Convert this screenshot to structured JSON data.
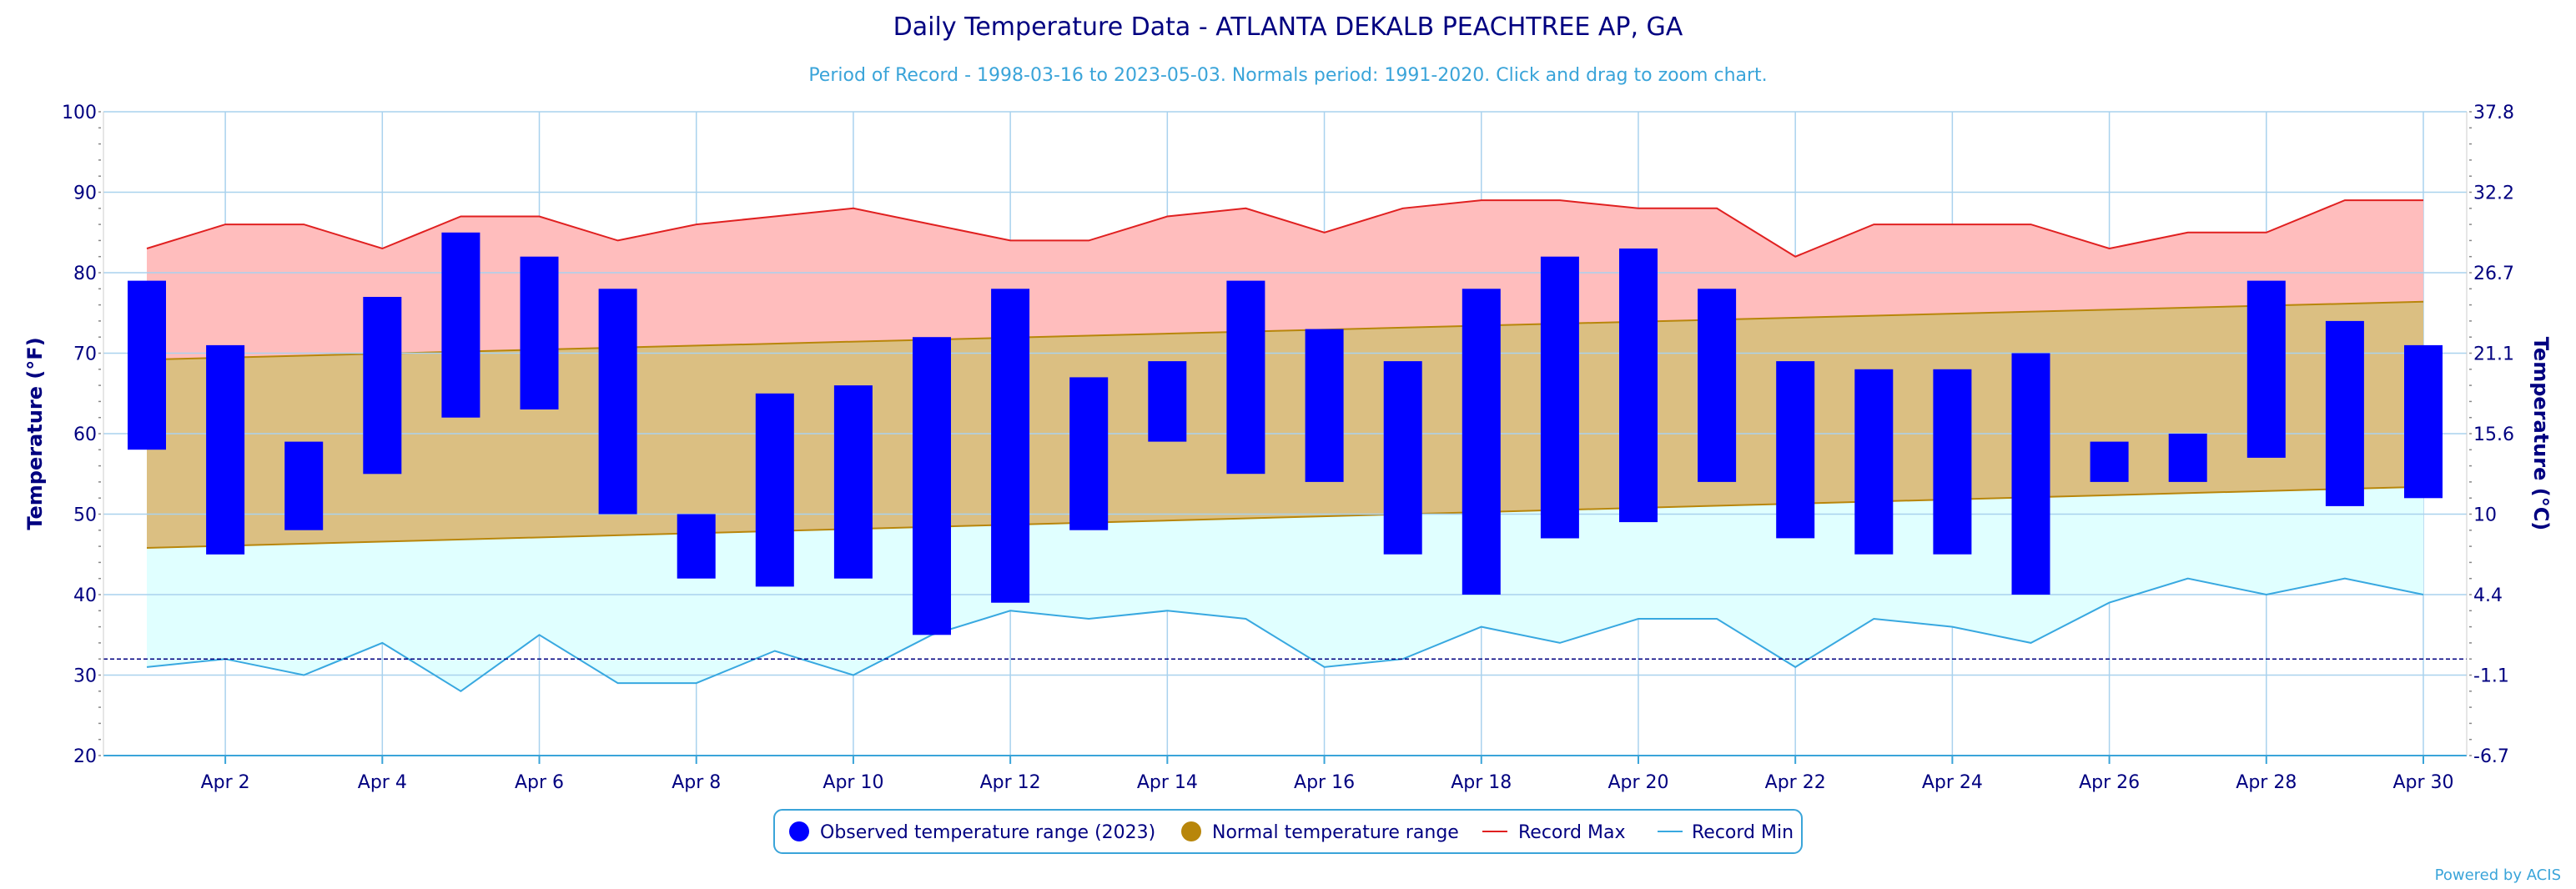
{
  "chart_data": {
    "type": "bar",
    "title": "Daily Temperature Data - ATLANTA DEKALB PEACHTREE AP, GA",
    "subtitle": "Period of Record - 1998-03-16 to 2023-05-03. Normals period: 1991-2020. Click and drag to zoom chart.",
    "credit": "Powered by ACIS",
    "ylabel": "Temperature (°F)",
    "ylabel_right": "Temperature (°C)",
    "ylim": [
      20,
      100
    ],
    "yticks": [
      20,
      30,
      40,
      50,
      60,
      70,
      80,
      90,
      100
    ],
    "yticks_right": [
      "-6.7",
      "-1.1",
      "4.4",
      "10",
      "15.6",
      "21.1",
      "26.7",
      "32.2",
      "37.8"
    ],
    "x": [
      1,
      2,
      3,
      4,
      5,
      6,
      7,
      8,
      9,
      10,
      11,
      12,
      13,
      14,
      15,
      16,
      17,
      18,
      19,
      20,
      21,
      22,
      23,
      24,
      25,
      26,
      27,
      28,
      29,
      30
    ],
    "xticks": [
      {
        "day": 2,
        "label": "Apr 2"
      },
      {
        "day": 4,
        "label": "Apr 4"
      },
      {
        "day": 6,
        "label": "Apr 6"
      },
      {
        "day": 8,
        "label": "Apr 8"
      },
      {
        "day": 10,
        "label": "Apr 10"
      },
      {
        "day": 12,
        "label": "Apr 12"
      },
      {
        "day": 14,
        "label": "Apr 14"
      },
      {
        "day": 16,
        "label": "Apr 16"
      },
      {
        "day": 18,
        "label": "Apr 18"
      },
      {
        "day": 20,
        "label": "Apr 20"
      },
      {
        "day": 22,
        "label": "Apr 22"
      },
      {
        "day": 24,
        "label": "Apr 24"
      },
      {
        "day": 26,
        "label": "Apr 26"
      },
      {
        "day": 28,
        "label": "Apr 28"
      },
      {
        "day": 30,
        "label": "Apr 30"
      }
    ],
    "freezing_line": 32,
    "legend_position": "bottom-center",
    "series": [
      {
        "name": "Observed temperature range (2023)",
        "color": "#0000ff",
        "low": [
          58,
          45,
          48,
          55,
          62,
          63,
          50,
          42,
          41,
          42,
          35,
          39,
          48,
          59,
          55,
          54,
          45,
          40,
          47,
          49,
          54,
          47,
          45,
          45,
          40,
          54,
          54,
          57,
          51,
          52
        ],
        "high": [
          79,
          71,
          59,
          77,
          85,
          82,
          78,
          50,
          65,
          66,
          72,
          78,
          67,
          69,
          79,
          73,
          69,
          78,
          82,
          83,
          78,
          69,
          68,
          68,
          70,
          59,
          60,
          79,
          74,
          71
        ]
      },
      {
        "name": "Normal temperature range",
        "color": "#b8860b",
        "fill": "#dbbf82",
        "low_start": 45.8,
        "low_end": 53.4,
        "high_start": 69.2,
        "high_end": 76.4
      },
      {
        "name": "Record Max",
        "color": "#e02020",
        "fill": "#ffbdbd",
        "values": [
          83,
          86,
          86,
          83,
          87,
          87,
          84,
          86,
          87,
          88,
          86,
          84,
          84,
          87,
          88,
          85,
          88,
          89,
          89,
          88,
          88,
          82,
          86,
          86,
          86,
          83,
          85,
          85,
          89,
          89
        ]
      },
      {
        "name": "Record Min",
        "color": "#38a8e0",
        "fill": "#e0ffff",
        "values": [
          31,
          32,
          30,
          34,
          28,
          35,
          29,
          29,
          33,
          30,
          35,
          38,
          37,
          38,
          37,
          31,
          32,
          36,
          34,
          37,
          37,
          31,
          37,
          36,
          34,
          39,
          42,
          40,
          42,
          40
        ]
      }
    ]
  }
}
